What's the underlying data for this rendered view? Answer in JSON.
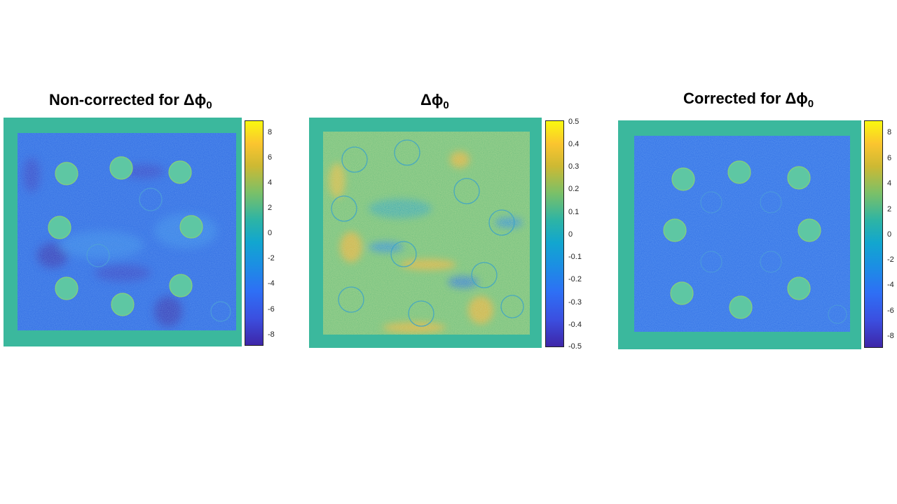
{
  "panels": [
    {
      "title_main": "Non-corrected for Δϕ",
      "title_sub": "0",
      "colorbar_ticks": [
        "8",
        "6",
        "4",
        "2",
        "0",
        "-2",
        "-4",
        "-6",
        "-8"
      ],
      "colorbar_range": [
        -9,
        9
      ]
    },
    {
      "title_main": "Δϕ",
      "title_sub": "0",
      "colorbar_ticks": [
        "0.5",
        "0.4",
        "0.3",
        "0.2",
        "0.1",
        "0",
        "-0.1",
        "-0.2",
        "-0.3",
        "-0.4",
        "-0.5"
      ],
      "colorbar_range": [
        -0.5,
        0.5
      ]
    },
    {
      "title_main": "Corrected for Δϕ",
      "title_sub": "0",
      "colorbar_ticks": [
        "8",
        "6",
        "4",
        "2",
        "0",
        "-2",
        "-4",
        "-6",
        "-8"
      ],
      "colorbar_range": [
        -9,
        9
      ]
    }
  ],
  "colors": {
    "border": "#3bb89d",
    "map_blue": "#2d6fe0",
    "map_yellowgreen": "#9ec35a"
  }
}
